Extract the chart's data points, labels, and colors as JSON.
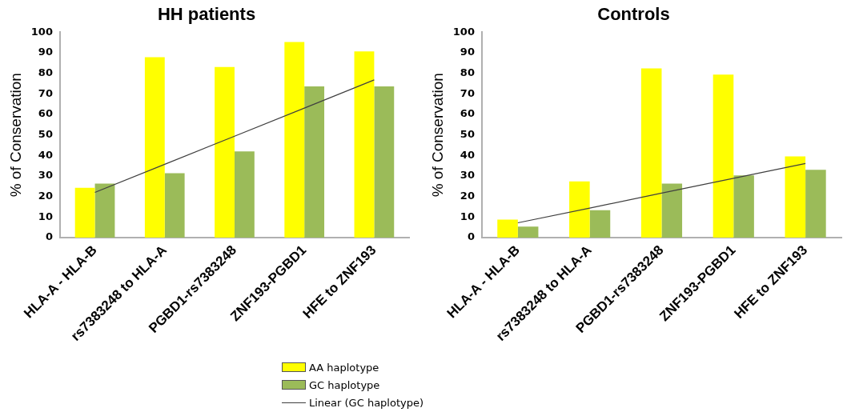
{
  "chart_data": [
    {
      "type": "bar",
      "title": "HH patients",
      "ylabel": "% of Conservation",
      "categories": [
        "HLA-A - HLA-B",
        "rs7383248 to HLA-A",
        "PGBD1-rs7383248",
        "ZNF193-PGBD1",
        "HFE to ZNF193"
      ],
      "series": [
        {
          "name": "AA haplotype",
          "color": "#ffff00",
          "values": [
            24.3,
            87.9,
            83.1,
            95.3,
            90.7
          ]
        },
        {
          "name": "GC haplotype",
          "color": "#9bbb59",
          "values": [
            26.3,
            31.4,
            42.0,
            73.7,
            73.7
          ]
        },
        {
          "name": "Linear (GC haplotype)",
          "type": "line",
          "color": "#404040",
          "values": [
            22.0,
            35.7,
            49.4,
            63.1,
            76.8
          ]
        }
      ],
      "ylim": [
        0,
        100
      ],
      "yticks": [
        0,
        10,
        20,
        30,
        40,
        50,
        60,
        70,
        80,
        90,
        100
      ],
      "grid": false,
      "legend": "bottom",
      "marker": "none",
      "line_style": "solid"
    },
    {
      "type": "bar",
      "title": "Controls",
      "ylabel": "% of Conservation",
      "categories": [
        "HLA-A - HLA-B",
        "rs7383248 to HLA-A",
        "PGBD1-rs7383248",
        "ZNF193-PGBD1",
        "HFE to ZNF193"
      ],
      "series": [
        {
          "name": "AA haplotype",
          "color": "#ffff00",
          "values": [
            8.8,
            27.4,
            82.4,
            79.4,
            39.6
          ]
        },
        {
          "name": "GC haplotype",
          "color": "#9bbb59",
          "values": [
            5.4,
            13.3,
            26.3,
            30.3,
            33.0
          ]
        },
        {
          "name": "Linear (GC haplotype)",
          "type": "line",
          "color": "#404040",
          "values": [
            7.2,
            14.4,
            21.7,
            28.9,
            36.1
          ]
        }
      ],
      "ylim": [
        0,
        100
      ],
      "yticks": [
        0,
        10,
        20,
        30,
        40,
        50,
        60,
        70,
        80,
        90,
        100
      ],
      "grid": false,
      "legend": "bottom",
      "marker": "none",
      "line_style": "solid"
    }
  ]
}
